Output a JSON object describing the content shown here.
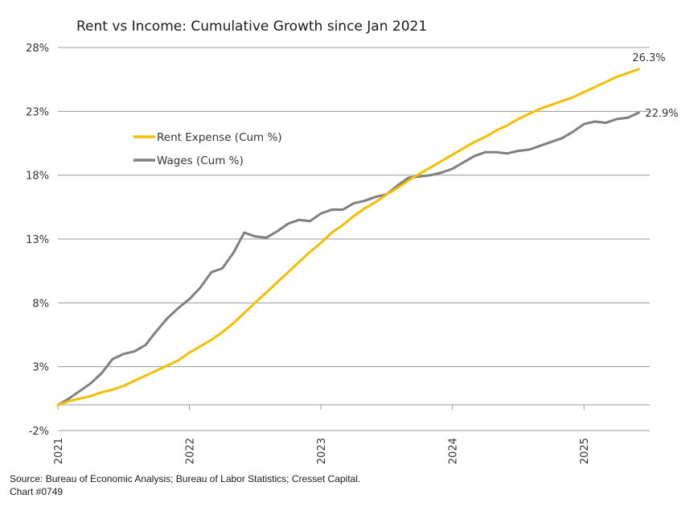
{
  "chart_data": {
    "type": "line",
    "title": "Rent vs Income: Cumulative Growth since Jan 2021",
    "xlabel": "",
    "ylabel": "",
    "ylim": [
      -2,
      28
    ],
    "xlim": [
      "2021-01",
      "2025-07"
    ],
    "y_ticks": [
      "-2%",
      "3%",
      "8%",
      "13%",
      "18%",
      "23%",
      "28%"
    ],
    "y_tick_values": [
      -2,
      3,
      8,
      13,
      18,
      23,
      28
    ],
    "x_ticks": [
      "2021",
      "2022",
      "2023",
      "2024",
      "2025"
    ],
    "x_tick_values": [
      "2021-01",
      "2022-01",
      "2023-01",
      "2024-01",
      "2025-01"
    ],
    "grid": "horizontal",
    "legend_position": "upper-left",
    "x": [
      "2021-01",
      "2021-02",
      "2021-03",
      "2021-04",
      "2021-05",
      "2021-06",
      "2021-07",
      "2021-08",
      "2021-09",
      "2021-10",
      "2021-11",
      "2021-12",
      "2022-01",
      "2022-02",
      "2022-03",
      "2022-04",
      "2022-05",
      "2022-06",
      "2022-07",
      "2022-08",
      "2022-09",
      "2022-10",
      "2022-11",
      "2022-12",
      "2023-01",
      "2023-02",
      "2023-03",
      "2023-04",
      "2023-05",
      "2023-06",
      "2023-07",
      "2023-08",
      "2023-09",
      "2023-10",
      "2023-11",
      "2023-12",
      "2024-01",
      "2024-02",
      "2024-03",
      "2024-04",
      "2024-05",
      "2024-06",
      "2024-07",
      "2024-08",
      "2024-09",
      "2024-10",
      "2024-11",
      "2024-12",
      "2025-01",
      "2025-02",
      "2025-03",
      "2025-04",
      "2025-05",
      "2025-06"
    ],
    "series": [
      {
        "name": "Rent Expense (Cum %)",
        "color": "#F5BE00",
        "end_label": "26.3%",
        "values": [
          0.0,
          0.3,
          0.5,
          0.7,
          1.0,
          1.2,
          1.5,
          1.9,
          2.3,
          2.7,
          3.1,
          3.5,
          4.1,
          4.6,
          5.1,
          5.7,
          6.4,
          7.2,
          8.0,
          8.8,
          9.6,
          10.4,
          11.2,
          12.0,
          12.7,
          13.5,
          14.1,
          14.8,
          15.4,
          15.9,
          16.5,
          17.0,
          17.6,
          18.1,
          18.6,
          19.1,
          19.6,
          20.1,
          20.6,
          21.0,
          21.5,
          21.9,
          22.4,
          22.8,
          23.2,
          23.5,
          23.8,
          24.1,
          24.5,
          24.9,
          25.3,
          25.7,
          26.0,
          26.3
        ]
      },
      {
        "name": "Wages (Cum %)",
        "color": "#7F7F7F",
        "end_label": "22.9%",
        "values": [
          0.0,
          0.5,
          1.1,
          1.7,
          2.5,
          3.6,
          4.0,
          4.2,
          4.7,
          5.8,
          6.8,
          7.6,
          8.3,
          9.2,
          10.4,
          10.7,
          11.9,
          13.5,
          13.2,
          13.1,
          13.6,
          14.2,
          14.5,
          14.4,
          15.0,
          15.3,
          15.3,
          15.8,
          16.0,
          16.3,
          16.5,
          17.2,
          17.8,
          17.9,
          18.0,
          18.2,
          18.5,
          19.0,
          19.5,
          19.8,
          19.8,
          19.7,
          19.9,
          20.0,
          20.3,
          20.6,
          20.9,
          21.4,
          22.0,
          22.2,
          22.1,
          22.4,
          22.5,
          22.9
        ]
      }
    ]
  },
  "footer": {
    "source": "Source: Bureau of Economic Analysis;  Bureau of Labor Statistics; Cresset Capital.",
    "chart_id": "Chart #0749"
  }
}
